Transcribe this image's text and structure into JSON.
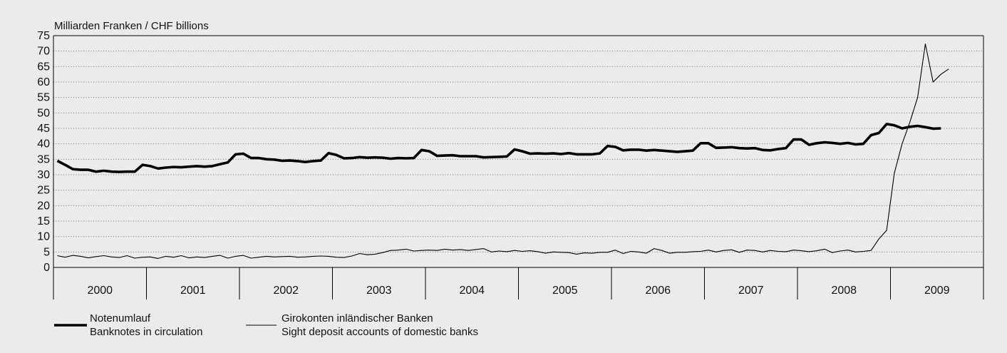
{
  "chart_data": {
    "type": "line",
    "ylabel": "Milliarden Franken / CHF billions",
    "ylim": [
      0,
      75
    ],
    "yticks": [
      0,
      5,
      10,
      15,
      20,
      25,
      30,
      35,
      40,
      45,
      50,
      55,
      60,
      65,
      70,
      75
    ],
    "xlim": [
      "2000-01",
      "2009-12"
    ],
    "year_labels": [
      "2000",
      "2001",
      "2002",
      "2003",
      "2004",
      "2005",
      "2006",
      "2007",
      "2008",
      "2009"
    ],
    "grid": "horizontal dotted",
    "legend_position": "bottom-left",
    "series": [
      {
        "name": "Notenumlauf",
        "name_en": "Banknotes in circulation",
        "style": "thick",
        "color": "#000000",
        "points": [
          [
            "2000-01",
            34.5
          ],
          [
            "2000-02",
            33.2
          ],
          [
            "2000-03",
            31.8
          ],
          [
            "2000-04",
            31.6
          ],
          [
            "2000-05",
            31.6
          ],
          [
            "2000-06",
            31.0
          ],
          [
            "2000-07",
            31.3
          ],
          [
            "2000-08",
            31.0
          ],
          [
            "2000-09",
            30.9
          ],
          [
            "2000-10",
            31.0
          ],
          [
            "2000-11",
            31.0
          ],
          [
            "2000-12",
            33.2
          ],
          [
            "2001-01",
            32.8
          ],
          [
            "2001-02",
            32.0
          ],
          [
            "2001-03",
            32.3
          ],
          [
            "2001-04",
            32.5
          ],
          [
            "2001-05",
            32.4
          ],
          [
            "2001-06",
            32.6
          ],
          [
            "2001-07",
            32.8
          ],
          [
            "2001-08",
            32.6
          ],
          [
            "2001-09",
            32.8
          ],
          [
            "2001-10",
            33.4
          ],
          [
            "2001-11",
            34.0
          ],
          [
            "2001-12",
            36.6
          ],
          [
            "2002-01",
            36.8
          ],
          [
            "2002-02",
            35.4
          ],
          [
            "2002-03",
            35.4
          ],
          [
            "2002-04",
            35.0
          ],
          [
            "2002-05",
            34.9
          ],
          [
            "2002-06",
            34.5
          ],
          [
            "2002-07",
            34.6
          ],
          [
            "2002-08",
            34.4
          ],
          [
            "2002-09",
            34.1
          ],
          [
            "2002-10",
            34.4
          ],
          [
            "2002-11",
            34.6
          ],
          [
            "2002-12",
            37.0
          ],
          [
            "2003-01",
            36.4
          ],
          [
            "2003-02",
            35.3
          ],
          [
            "2003-03",
            35.4
          ],
          [
            "2003-04",
            35.7
          ],
          [
            "2003-05",
            35.5
          ],
          [
            "2003-06",
            35.6
          ],
          [
            "2003-07",
            35.5
          ],
          [
            "2003-08",
            35.2
          ],
          [
            "2003-09",
            35.4
          ],
          [
            "2003-10",
            35.3
          ],
          [
            "2003-11",
            35.4
          ],
          [
            "2003-12",
            38.0
          ],
          [
            "2004-01",
            37.6
          ],
          [
            "2004-02",
            36.1
          ],
          [
            "2004-03",
            36.2
          ],
          [
            "2004-04",
            36.3
          ],
          [
            "2004-05",
            36.0
          ],
          [
            "2004-06",
            36.0
          ],
          [
            "2004-07",
            36.0
          ],
          [
            "2004-08",
            35.6
          ],
          [
            "2004-09",
            35.7
          ],
          [
            "2004-10",
            35.8
          ],
          [
            "2004-11",
            35.9
          ],
          [
            "2004-12",
            38.2
          ],
          [
            "2005-01",
            37.6
          ],
          [
            "2005-02",
            36.8
          ],
          [
            "2005-03",
            36.9
          ],
          [
            "2005-04",
            36.8
          ],
          [
            "2005-05",
            36.9
          ],
          [
            "2005-06",
            36.7
          ],
          [
            "2005-07",
            37.0
          ],
          [
            "2005-08",
            36.6
          ],
          [
            "2005-09",
            36.6
          ],
          [
            "2005-10",
            36.6
          ],
          [
            "2005-11",
            36.9
          ],
          [
            "2005-12",
            39.3
          ],
          [
            "2006-01",
            39.0
          ],
          [
            "2006-02",
            37.9
          ],
          [
            "2006-03",
            38.1
          ],
          [
            "2006-04",
            38.1
          ],
          [
            "2006-05",
            37.8
          ],
          [
            "2006-06",
            38.0
          ],
          [
            "2006-07",
            37.8
          ],
          [
            "2006-08",
            37.6
          ],
          [
            "2006-09",
            37.4
          ],
          [
            "2006-10",
            37.6
          ],
          [
            "2006-11",
            37.8
          ],
          [
            "2006-12",
            40.2
          ],
          [
            "2007-01",
            40.2
          ],
          [
            "2007-02",
            38.7
          ],
          [
            "2007-03",
            38.8
          ],
          [
            "2007-04",
            38.9
          ],
          [
            "2007-05",
            38.6
          ],
          [
            "2007-06",
            38.5
          ],
          [
            "2007-07",
            38.6
          ],
          [
            "2007-08",
            38.0
          ],
          [
            "2007-09",
            37.9
          ],
          [
            "2007-10",
            38.3
          ],
          [
            "2007-11",
            38.6
          ],
          [
            "2007-12",
            41.4
          ],
          [
            "2008-01",
            41.4
          ],
          [
            "2008-02",
            39.7
          ],
          [
            "2008-03",
            40.2
          ],
          [
            "2008-04",
            40.5
          ],
          [
            "2008-05",
            40.3
          ],
          [
            "2008-06",
            40.0
          ],
          [
            "2008-07",
            40.3
          ],
          [
            "2008-08",
            39.8
          ],
          [
            "2008-09",
            40.0
          ],
          [
            "2008-10",
            42.8
          ],
          [
            "2008-11",
            43.5
          ],
          [
            "2008-12",
            46.4
          ],
          [
            "2009-01",
            46.0
          ],
          [
            "2009-02",
            45.0
          ],
          [
            "2009-03",
            45.5
          ],
          [
            "2009-04",
            45.8
          ],
          [
            "2009-05",
            45.4
          ],
          [
            "2009-06",
            44.9
          ],
          [
            "2009-07",
            45.0
          ]
        ]
      },
      {
        "name": "Girokonten inländischer Banken",
        "name_en": "Sight deposit accounts of domestic banks",
        "style": "thin",
        "color": "#000000",
        "points": [
          [
            "2000-01",
            3.8
          ],
          [
            "2000-02",
            3.3
          ],
          [
            "2000-03",
            3.9
          ],
          [
            "2000-04",
            3.6
          ],
          [
            "2000-05",
            3.1
          ],
          [
            "2000-06",
            3.5
          ],
          [
            "2000-07",
            3.8
          ],
          [
            "2000-08",
            3.4
          ],
          [
            "2000-09",
            3.2
          ],
          [
            "2000-10",
            3.8
          ],
          [
            "2000-11",
            3.0
          ],
          [
            "2000-12",
            3.3
          ],
          [
            "2001-01",
            3.4
          ],
          [
            "2001-02",
            2.9
          ],
          [
            "2001-03",
            3.6
          ],
          [
            "2001-04",
            3.3
          ],
          [
            "2001-05",
            3.8
          ],
          [
            "2001-06",
            3.1
          ],
          [
            "2001-07",
            3.4
          ],
          [
            "2001-08",
            3.2
          ],
          [
            "2001-09",
            3.6
          ],
          [
            "2001-10",
            3.9
          ],
          [
            "2001-11",
            3.0
          ],
          [
            "2001-12",
            3.6
          ],
          [
            "2002-01",
            3.9
          ],
          [
            "2002-02",
            3.0
          ],
          [
            "2002-03",
            3.3
          ],
          [
            "2002-04",
            3.6
          ],
          [
            "2002-05",
            3.4
          ],
          [
            "2002-06",
            3.5
          ],
          [
            "2002-07",
            3.6
          ],
          [
            "2002-08",
            3.3
          ],
          [
            "2002-09",
            3.4
          ],
          [
            "2002-10",
            3.6
          ],
          [
            "2002-11",
            3.7
          ],
          [
            "2002-12",
            3.6
          ],
          [
            "2003-01",
            3.3
          ],
          [
            "2003-02",
            3.2
          ],
          [
            "2003-03",
            3.7
          ],
          [
            "2003-04",
            4.5
          ],
          [
            "2003-05",
            4.1
          ],
          [
            "2003-06",
            4.3
          ],
          [
            "2003-07",
            4.8
          ],
          [
            "2003-08",
            5.5
          ],
          [
            "2003-09",
            5.6
          ],
          [
            "2003-10",
            5.9
          ],
          [
            "2003-11",
            5.3
          ],
          [
            "2003-12",
            5.5
          ],
          [
            "2004-01",
            5.6
          ],
          [
            "2004-02",
            5.5
          ],
          [
            "2004-03",
            5.9
          ],
          [
            "2004-04",
            5.6
          ],
          [
            "2004-05",
            5.8
          ],
          [
            "2004-06",
            5.5
          ],
          [
            "2004-07",
            5.8
          ],
          [
            "2004-08",
            6.1
          ],
          [
            "2004-09",
            5.0
          ],
          [
            "2004-10",
            5.3
          ],
          [
            "2004-11",
            5.1
          ],
          [
            "2004-12",
            5.5
          ],
          [
            "2005-01",
            5.2
          ],
          [
            "2005-02",
            5.4
          ],
          [
            "2005-03",
            5.1
          ],
          [
            "2005-04",
            4.6
          ],
          [
            "2005-05",
            5.0
          ],
          [
            "2005-06",
            4.9
          ],
          [
            "2005-07",
            4.8
          ],
          [
            "2005-08",
            4.3
          ],
          [
            "2005-09",
            4.7
          ],
          [
            "2005-10",
            4.6
          ],
          [
            "2005-11",
            4.9
          ],
          [
            "2005-12",
            4.9
          ],
          [
            "2006-01",
            5.6
          ],
          [
            "2006-02",
            4.5
          ],
          [
            "2006-03",
            5.2
          ],
          [
            "2006-04",
            5.0
          ],
          [
            "2006-05",
            4.6
          ],
          [
            "2006-06",
            6.1
          ],
          [
            "2006-07",
            5.5
          ],
          [
            "2006-08",
            4.6
          ],
          [
            "2006-09",
            4.9
          ],
          [
            "2006-10",
            4.9
          ],
          [
            "2006-11",
            5.1
          ],
          [
            "2006-12",
            5.2
          ],
          [
            "2007-01",
            5.6
          ],
          [
            "2007-02",
            5.0
          ],
          [
            "2007-03",
            5.5
          ],
          [
            "2007-04",
            5.7
          ],
          [
            "2007-05",
            4.9
          ],
          [
            "2007-06",
            5.6
          ],
          [
            "2007-07",
            5.5
          ],
          [
            "2007-08",
            5.0
          ],
          [
            "2007-09",
            5.5
          ],
          [
            "2007-10",
            5.2
          ],
          [
            "2007-11",
            5.1
          ],
          [
            "2007-12",
            5.6
          ],
          [
            "2008-01",
            5.4
          ],
          [
            "2008-02",
            5.1
          ],
          [
            "2008-03",
            5.4
          ],
          [
            "2008-04",
            5.9
          ],
          [
            "2008-05",
            4.8
          ],
          [
            "2008-06",
            5.3
          ],
          [
            "2008-07",
            5.6
          ],
          [
            "2008-08",
            5.0
          ],
          [
            "2008-09",
            5.2
          ],
          [
            "2008-10",
            5.5
          ],
          [
            "2008-11",
            9.2
          ],
          [
            "2008-12",
            12.0
          ],
          [
            "2009-01",
            30.5
          ],
          [
            "2009-02",
            40.0
          ],
          [
            "2009-03",
            47.0
          ],
          [
            "2009-04",
            55.0
          ],
          [
            "2009-05",
            72.3
          ],
          [
            "2009-06",
            60.0
          ],
          [
            "2009-07",
            62.5
          ],
          [
            "2009-08",
            64.2
          ]
        ]
      }
    ]
  }
}
